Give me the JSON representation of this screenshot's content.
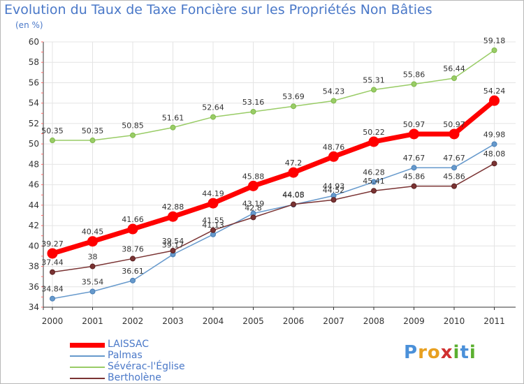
{
  "header": {
    "title": "Evolution du Taux de Taxe Foncière sur les Propriétés Non Bâties",
    "unit": "(en %)"
  },
  "colors": {
    "background": "#ffffff",
    "plot_background": "#ffffff",
    "grid": "#e4e4e4",
    "text_blue": "#4a78c8"
  },
  "chart_data": {
    "type": "line",
    "title": "Evolution du Taux de Taxe Foncière sur les Propriétés Non Bâties",
    "ylabel": "(en %)",
    "xlabel": "",
    "x": [
      "2000",
      "2001",
      "2002",
      "2003",
      "2004",
      "2005",
      "2006",
      "2007",
      "2008",
      "2009",
      "2010",
      "2011"
    ],
    "ylim": [
      34,
      60
    ],
    "yticks": [
      34,
      36,
      38,
      40,
      42,
      44,
      46,
      48,
      50,
      52,
      54,
      56,
      58,
      60
    ],
    "grid": true,
    "legend_position": "bottom-left",
    "series": [
      {
        "name": "LAISSAC",
        "color": "#ff0000",
        "values": [
          39.27,
          40.45,
          41.66,
          42.88,
          44.19,
          45.88,
          47.2,
          48.76,
          50.22,
          50.97,
          50.97,
          54.24
        ],
        "labels": [
          "39.27",
          "40.45",
          "41.66",
          "42.88",
          "44.19",
          "45.88",
          "47.2",
          "48.76",
          "50.22",
          "50.97",
          "50.97",
          "54.24"
        ]
      },
      {
        "name": "Palmas",
        "color": "#6699cc",
        "values": [
          34.84,
          35.54,
          36.61,
          39.17,
          41.13,
          43.19,
          44.05,
          44.93,
          46.28,
          47.67,
          47.67,
          49.98
        ],
        "labels": [
          "34.84",
          "35.54",
          "36.61",
          "39.17",
          "41.13",
          "43.19",
          "44.05",
          "44.93",
          "46.28",
          "47.67",
          "47.67",
          "49.98"
        ]
      },
      {
        "name": "Sévérac-l'Église",
        "color": "#99cc66",
        "values": [
          50.35,
          50.35,
          50.85,
          51.61,
          52.64,
          53.16,
          53.69,
          54.23,
          55.31,
          55.86,
          56.44,
          59.18
        ],
        "labels": [
          "50.35",
          "50.35",
          "50.85",
          "51.61",
          "52.64",
          "53.16",
          "53.69",
          "54.23",
          "55.31",
          "55.86",
          "56.44",
          "59.18"
        ]
      },
      {
        "name": "Bertholène",
        "color": "#7a3333",
        "values": [
          37.44,
          38,
          38.76,
          39.54,
          41.55,
          42.8,
          44.08,
          44.52,
          45.41,
          45.86,
          45.86,
          48.08
        ],
        "labels": [
          "37.44",
          "38",
          "38.76",
          "39.54",
          "41.55",
          "42.8",
          "44.08",
          "44.52",
          "45.41",
          "45.86",
          "45.86",
          "48.08"
        ]
      }
    ]
  },
  "logo": {
    "text": "Proxiti",
    "letters": [
      {
        "ch": "P",
        "color": "#4a90d9"
      },
      {
        "ch": "r",
        "color": "#e8a020"
      },
      {
        "ch": "o",
        "color": "#e8a020"
      },
      {
        "ch": "x",
        "color": "#d03030"
      },
      {
        "ch": "i",
        "color": "#5bb030"
      },
      {
        "ch": "t",
        "color": "#4a90d9"
      },
      {
        "ch": "i",
        "color": "#5bb030"
      }
    ]
  }
}
